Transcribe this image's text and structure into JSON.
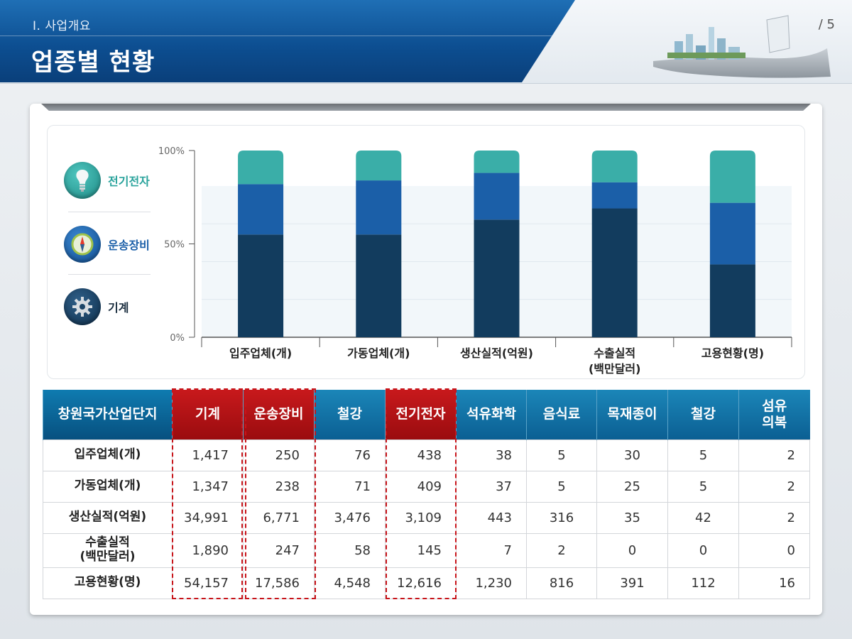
{
  "header": {
    "section": "Ⅰ. 사업개요",
    "title": "업종별 현황",
    "page": "/ 5"
  },
  "legend": [
    {
      "label": "전기전자",
      "color": "#3aaea8",
      "icon": "lightbulb-icon"
    },
    {
      "label": "운송장비",
      "color": "#1b5fa8",
      "icon": "compass-icon"
    },
    {
      "label": "기계",
      "color": "#123c5e",
      "icon": "gear-icon"
    }
  ],
  "chart_data": {
    "type": "bar",
    "stacked": true,
    "categories": [
      "입주업체(개)",
      "가동업체(개)",
      "생산실적(억원)",
      "수출실적\n(백만달러)",
      "고용현황(명)"
    ],
    "series": [
      {
        "name": "기계",
        "values": [
          55,
          55,
          63,
          69,
          39
        ],
        "color": "#123c5e"
      },
      {
        "name": "운송장비",
        "values": [
          27,
          29,
          25,
          14,
          33
        ],
        "color": "#1b5fa8"
      },
      {
        "name": "전기전자",
        "values": [
          18,
          16,
          12,
          17,
          28
        ],
        "color": "#3aaea8"
      }
    ],
    "ylim": [
      0,
      100
    ],
    "yticks": [
      "0%",
      "50%",
      "100%"
    ],
    "grid": true
  },
  "table": {
    "headers": [
      "창원국가산업단지",
      "기계",
      "운송장비",
      "철강",
      "전기전자",
      "석유화학",
      "음식료",
      "목재종이",
      "철강",
      "섬유\n의복"
    ],
    "highlighted_columns": [
      1,
      2,
      4
    ],
    "highlight_color": "#b81216",
    "header_color": "#0d6fa3",
    "rows": [
      {
        "label": "입주업체(개)",
        "values": [
          "1,417",
          "250",
          "76",
          "438",
          "38",
          "5",
          "30",
          "5",
          "2"
        ]
      },
      {
        "label": "가동업체(개)",
        "values": [
          "1,347",
          "238",
          "71",
          "409",
          "37",
          "5",
          "25",
          "5",
          "2"
        ]
      },
      {
        "label": "생산실적(억원)",
        "values": [
          "34,991",
          "6,771",
          "3,476",
          "3,109",
          "443",
          "316",
          "35",
          "42",
          "2"
        ]
      },
      {
        "label": "수출실적\n(백만달러)",
        "values": [
          "1,890",
          "247",
          "58",
          "145",
          "7",
          "2",
          "0",
          "0",
          "0"
        ]
      },
      {
        "label": "고용현황(명)",
        "values": [
          "54,157",
          "17,586",
          "4,548",
          "12,616",
          "1,230",
          "816",
          "391",
          "112",
          "16"
        ]
      }
    ]
  }
}
